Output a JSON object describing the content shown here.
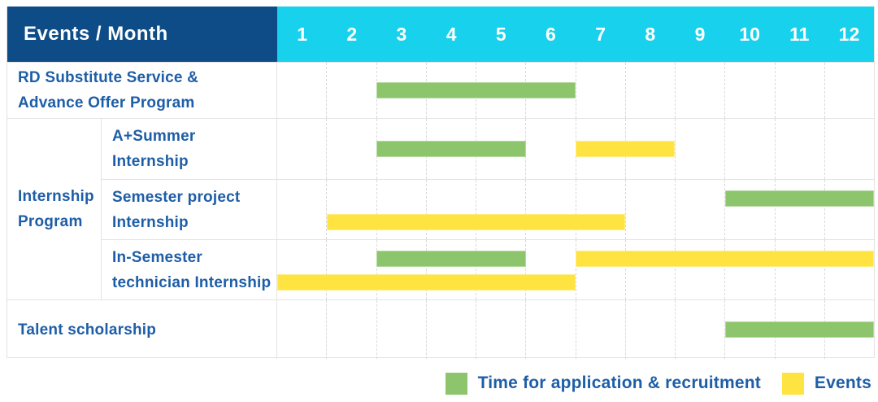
{
  "header": {
    "label": "Events / Month",
    "months": [
      "1",
      "2",
      "3",
      "4",
      "5",
      "6",
      "7",
      "8",
      "9",
      "10",
      "11",
      "12"
    ]
  },
  "colors": {
    "navy": "#0D4C87",
    "cyan": "#18D1EC",
    "green": "#8CC56B",
    "yellow": "#FFE340",
    "label_text": "#1E5EA7",
    "header_text": "#FFFFFF",
    "grid_dashed": "#DADADA",
    "grid_solid": "#E3E3E3"
  },
  "chart_data": {
    "type": "gantt",
    "unit": "month",
    "axis_months": [
      1,
      2,
      3,
      4,
      5,
      6,
      7,
      8,
      9,
      10,
      11,
      12
    ],
    "rows": [
      {
        "kind": "single",
        "height": 69,
        "label_lines": [
          "RD Substitute Service &",
          "Advance Offer Program"
        ],
        "bars": [
          {
            "type": "application",
            "start": 3,
            "end": 6,
            "lane": "center"
          }
        ]
      },
      {
        "kind": "group",
        "label_lines": [
          "Internship",
          "Program"
        ],
        "children": [
          {
            "height": 74,
            "label_lines": [
              "A+Summer",
              "Internship"
            ],
            "bars": [
              {
                "type": "application",
                "start": 3,
                "end": 5,
                "lane": "center"
              },
              {
                "type": "event",
                "start": 7,
                "end": 8,
                "lane": "center"
              }
            ]
          },
          {
            "height": 74,
            "label_lines": [
              "Semester project",
              "Internship"
            ],
            "bars": [
              {
                "type": "application",
                "start": 10,
                "end": 12,
                "lane": "upper"
              },
              {
                "type": "event",
                "start": 2,
                "end": 7,
                "lane": "lower"
              }
            ]
          },
          {
            "height": 74,
            "label_lines": [
              "In-Semester",
              "technician Internship"
            ],
            "bars": [
              {
                "type": "application",
                "start": 3,
                "end": 5,
                "lane": "upper"
              },
              {
                "type": "event",
                "start": 7,
                "end": 12,
                "lane": "upper"
              },
              {
                "type": "event",
                "start": 1,
                "end": 6,
                "lane": "lower"
              }
            ]
          }
        ]
      },
      {
        "kind": "single",
        "height": 73,
        "label_lines": [
          "Talent scholarship"
        ],
        "bars": [
          {
            "type": "application",
            "start": 10,
            "end": 12,
            "lane": "center"
          }
        ]
      }
    ],
    "legend": [
      {
        "type": "application",
        "label": "Time for application & recruitment",
        "color": "#8CC56B"
      },
      {
        "type": "event",
        "label": "Events",
        "color": "#FFE340"
      }
    ]
  }
}
